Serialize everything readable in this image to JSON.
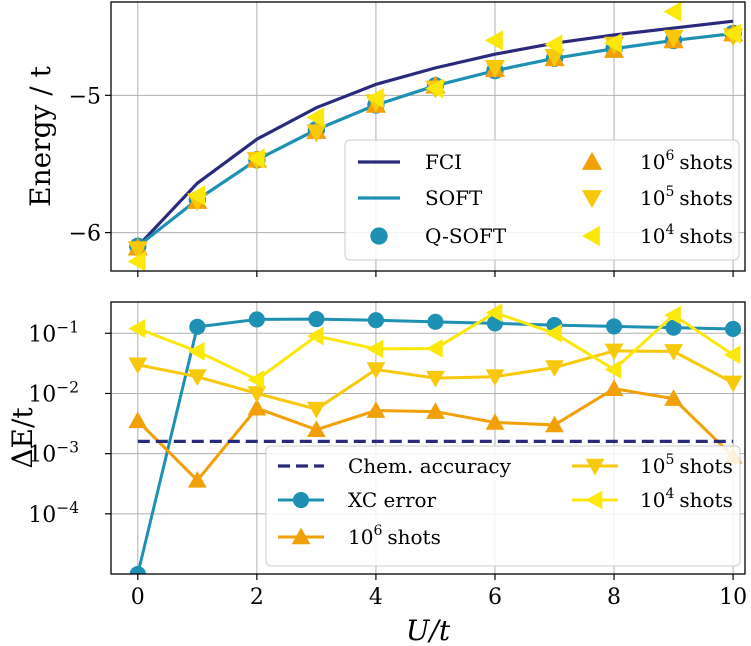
{
  "colors": {
    "fci": "#2a2a7c",
    "soft": "#1e90b4",
    "qsoft": "#1e90b4",
    "shots1e6": "#f2a007",
    "shots1e5": "#f8c80a",
    "shots1e4": "#fbe80a",
    "chem": "#2a2a7c"
  },
  "chart_data": [
    {
      "type": "line",
      "panel": "top",
      "ylabel": "Energy / t",
      "xlabel": "",
      "x": [
        0,
        1,
        2,
        3,
        4,
        5,
        6,
        7,
        8,
        9,
        10
      ],
      "yticks": [
        -6,
        -5
      ],
      "ytick_labels": [
        "−6",
        "−5"
      ],
      "ylim": [
        -6.28,
        -4.32
      ],
      "xlim": [
        -0.45,
        10.2
      ],
      "grid": true,
      "legend_position": "lower-right",
      "series": [
        {
          "name": "FCI",
          "style": "line",
          "color_key": "fci",
          "values": [
            -6.1,
            -5.64,
            -5.32,
            -5.09,
            -4.92,
            -4.8,
            -4.7,
            -4.62,
            -4.56,
            -4.51,
            -4.46
          ]
        },
        {
          "name": "SOFT",
          "style": "line",
          "color_key": "soft",
          "values": [
            -6.1,
            -5.76,
            -5.47,
            -5.25,
            -5.07,
            -4.93,
            -4.82,
            -4.73,
            -4.66,
            -4.6,
            -4.55
          ]
        },
        {
          "name": "Q-SOFT",
          "style": "circle",
          "color_key": "qsoft",
          "values": [
            -6.1,
            -5.76,
            -5.47,
            -5.25,
            -5.07,
            -4.93,
            -4.82,
            -4.73,
            -4.66,
            -4.6,
            -4.55
          ]
        },
        {
          "name": "10^6 shots",
          "style": "triangle-up",
          "color_key": "shots1e6",
          "values": [
            -6.11,
            -5.77,
            -5.47,
            -5.26,
            -5.07,
            -4.93,
            -4.81,
            -4.73,
            -4.67,
            -4.6,
            -4.55
          ]
        },
        {
          "name": "10^5 shots",
          "style": "triangle-down",
          "color_key": "shots1e5",
          "values": [
            -6.12,
            -5.77,
            -5.47,
            -5.27,
            -5.05,
            -4.95,
            -4.8,
            -4.72,
            -4.63,
            -4.58,
            -4.57
          ]
        },
        {
          "name": "10^4 shots",
          "style": "triangle-left",
          "color_key": "shots1e4",
          "values": [
            -6.21,
            -5.73,
            -5.46,
            -5.16,
            -5.02,
            -4.95,
            -4.6,
            -4.63,
            -4.62,
            -4.39,
            -4.55
          ]
        }
      ],
      "legend": {
        "col1": [
          "FCI",
          "SOFT",
          "Q-SOFT"
        ],
        "col2_base": [
          "10",
          "10",
          "10"
        ],
        "col2_exp": [
          "6",
          "5",
          "4"
        ],
        "col2_suffix": [
          "shots",
          "shots",
          "shots"
        ]
      }
    },
    {
      "type": "line",
      "panel": "bottom",
      "yscale": "log",
      "ylabel": "ΔE/t",
      "xlabel": "U/t",
      "x": [
        0,
        1,
        2,
        3,
        4,
        5,
        6,
        7,
        8,
        9,
        10
      ],
      "xticks": [
        0,
        2,
        4,
        6,
        8,
        10
      ],
      "xtick_labels": [
        "0",
        "2",
        "4",
        "6",
        "8",
        "10"
      ],
      "ytick_base": [
        "10",
        "10",
        "10",
        "10"
      ],
      "ytick_exp": [
        "−1",
        "−2",
        "−3",
        "−4"
      ],
      "yticks_log10": [
        -1,
        -2,
        -3,
        -4
      ],
      "ylim_log10": [
        -5.0,
        -0.48
      ],
      "grid": true,
      "legend_position": "lower-right",
      "series": [
        {
          "name": "Chem. accuracy",
          "style": "dashed",
          "color_key": "chem",
          "values": [
            0.0016,
            0.0016,
            0.0016,
            0.0016,
            0.0016,
            0.0016,
            0.0016,
            0.0016,
            0.0016,
            0.0016,
            0.0016
          ]
        },
        {
          "name": "XC error",
          "style": "line-circle",
          "color_key": "soft",
          "values": [
            1e-05,
            0.128,
            0.17,
            0.172,
            0.165,
            0.155,
            0.146,
            0.137,
            0.13,
            0.124,
            0.118
          ]
        },
        {
          "name": "10^6 shots",
          "style": "line-triangle-up",
          "color_key": "shots1e6",
          "values": [
            0.0035,
            0.00036,
            0.0057,
            0.0025,
            0.0052,
            0.005,
            0.0033,
            0.003,
            0.012,
            0.0082,
            0.0009
          ]
        },
        {
          "name": "10^5 shots",
          "style": "line-triangle-down",
          "color_key": "shots1e5",
          "values": [
            0.03,
            0.019,
            0.01,
            0.0055,
            0.025,
            0.018,
            0.019,
            0.027,
            0.051,
            0.05,
            0.015
          ]
        },
        {
          "name": "10^4 shots",
          "style": "line-triangle-left",
          "color_key": "shots1e4",
          "values": [
            0.12,
            0.05,
            0.017,
            0.09,
            0.055,
            0.056,
            0.22,
            0.1,
            0.025,
            0.2,
            0.044
          ]
        }
      ],
      "legend": {
        "col1": [
          "Chem. accuracy",
          "XC error"
        ],
        "col1_row3_base": "10",
        "col1_row3_exp": "6",
        "col1_row3_suffix": "shots",
        "col2_base": [
          "10",
          "10"
        ],
        "col2_exp": [
          "5",
          "4"
        ],
        "col2_suffix": [
          "shots",
          "shots"
        ]
      }
    }
  ]
}
